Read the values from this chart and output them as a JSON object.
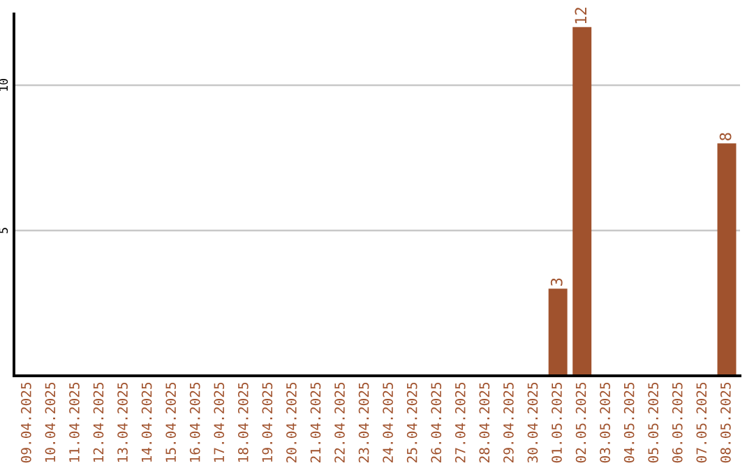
{
  "chart_data": {
    "type": "bar",
    "categories": [
      "09.04.2025",
      "10.04.2025",
      "11.04.2025",
      "12.04.2025",
      "13.04.2025",
      "14.04.2025",
      "15.04.2025",
      "16.04.2025",
      "17.04.2025",
      "18.04.2025",
      "19.04.2025",
      "20.04.2025",
      "21.04.2025",
      "22.04.2025",
      "23.04.2025",
      "24.04.2025",
      "25.04.2025",
      "26.04.2025",
      "27.04.2025",
      "28.04.2025",
      "29.04.2025",
      "30.04.2025",
      "01.05.2025",
      "02.05.2025",
      "03.05.2025",
      "04.05.2025",
      "05.05.2025",
      "06.05.2025",
      "07.05.2025",
      "08.05.2025"
    ],
    "values": [
      0,
      0,
      0,
      0,
      0,
      0,
      0,
      0,
      0,
      0,
      0,
      0,
      0,
      0,
      0,
      0,
      0,
      0,
      0,
      0,
      0,
      0,
      3,
      12,
      0,
      0,
      0,
      0,
      0,
      8
    ],
    "value_labels": [
      null,
      null,
      null,
      null,
      null,
      null,
      null,
      null,
      null,
      null,
      null,
      null,
      null,
      null,
      null,
      null,
      null,
      null,
      null,
      null,
      null,
      null,
      "3",
      "12",
      null,
      null,
      null,
      null,
      null,
      "8"
    ],
    "color": "#a0522d",
    "ylim": [
      0,
      12.45
    ],
    "yticks": [
      5,
      10
    ],
    "grid": "y"
  }
}
